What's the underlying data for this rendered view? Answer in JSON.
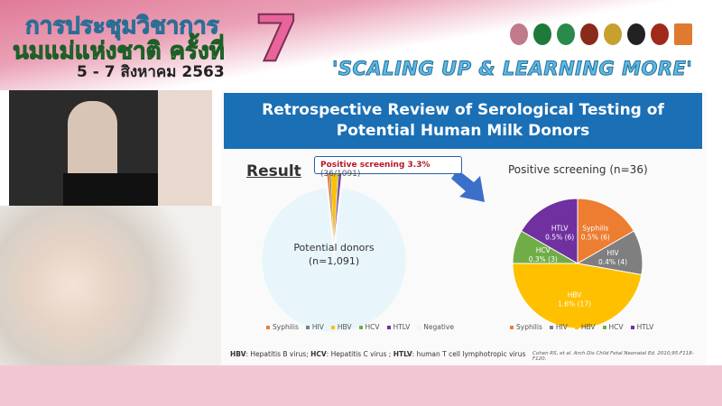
{
  "banner": {
    "title_line1": "การประชุมวิชาการ",
    "title_line2": "นมแม่แห่งชาติ ครั้งที่",
    "dates": "5 - 7 สิงหาคม 2563",
    "number": "7",
    "slogan": "'SCALING UP & LEARNING MORE'"
  },
  "slide": {
    "title_line1": "Retrospective Review of Serological Testing of",
    "title_line2": "Potential Human Milk Donors",
    "result": "Result",
    "callout_bold": "Positive screening 3.3%",
    "callout_rest": "(36/1091)",
    "left_center_line1": "Potential donors",
    "left_center_line2": "(n=1,091)",
    "right_title": "Positive screening (n=36)",
    "footnote": {
      "hbv_abbr": "HBV",
      "hbv": ": Hepatitis B virus; ",
      "hcv_abbr": "HCV",
      "hcv": ": Hepatitis C virus ; ",
      "htlv_abbr": "HTLV",
      "htlv": ": human T cell lymphotropic virus"
    },
    "citation": "Cohen RS, et al. Arch Dis Child Fetal Neonatal Ed. 2010;95:F118-F120."
  },
  "chart_data": [
    {
      "type": "pie",
      "categories": [
        "Syphilis",
        "HIV",
        "HBV",
        "HCV",
        "HTLV",
        "Negative"
      ],
      "values": [
        6,
        4,
        17,
        3,
        6,
        1055
      ],
      "colors": [
        "#ed7d31",
        "#7f7f7f",
        "#ffc000",
        "#70ad47",
        "#7030a0",
        "#e8f6fc"
      ],
      "legend": "bottom"
    },
    {
      "type": "pie",
      "title": "Positive screening (n=36)",
      "categories": [
        "Syphilis",
        "HIV",
        "HBV",
        "HCV",
        "HTLV"
      ],
      "values": [
        6,
        4,
        17,
        3,
        6
      ],
      "data_labels": [
        "0.5% (6)",
        "0.4% (4)",
        "1.6% (17)",
        "0.3% (3)",
        "0.5% (6)"
      ],
      "colors": [
        "#ed7d31",
        "#7f7f7f",
        "#ffc000",
        "#70ad47",
        "#7030a0"
      ],
      "legend": "bottom"
    }
  ]
}
